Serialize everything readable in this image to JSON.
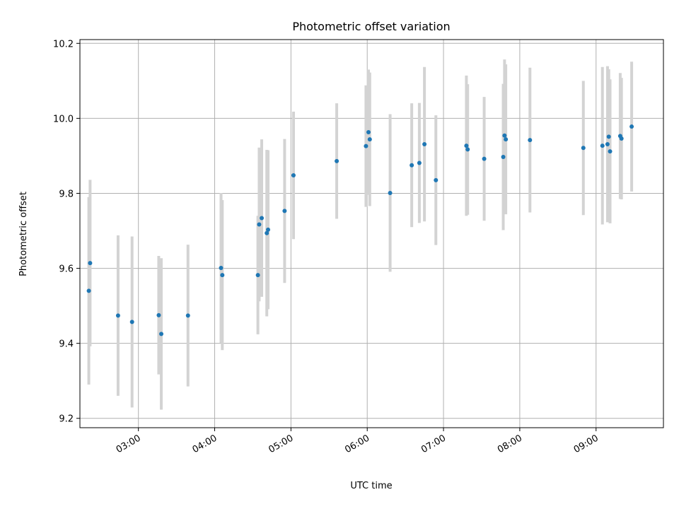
{
  "chart_data": {
    "type": "scatter",
    "title": "Photometric offset variation",
    "xlabel": "UTC time",
    "ylabel": "Photometric offset",
    "x_ticks": [
      "03:00",
      "04:00",
      "05:00",
      "06:00",
      "07:00",
      "08:00",
      "09:00"
    ],
    "y_ticks": [
      "9.2",
      "9.4",
      "9.6",
      "9.8",
      "10.0",
      "10.2"
    ],
    "xlim": [
      "02:14",
      "09:53"
    ],
    "ylim": [
      9.175,
      10.21
    ],
    "grid": true,
    "colors": {
      "point": "#1f77b4",
      "errorbar": "#d3d3d3",
      "grid": "#b0b0b0"
    },
    "series": [
      {
        "points": [
          {
            "x": "02:21",
            "y": 9.54,
            "err": 0.25
          },
          {
            "x": "02:22",
            "y": 9.614,
            "err": 0.222
          },
          {
            "x": "02:44",
            "y": 9.474,
            "err": 0.214
          },
          {
            "x": "02:55",
            "y": 9.457,
            "err": 0.228
          },
          {
            "x": "03:16",
            "y": 9.475,
            "err": 0.158
          },
          {
            "x": "03:18",
            "y": 9.425,
            "err": 0.202
          },
          {
            "x": "03:39",
            "y": 9.474,
            "err": 0.189
          },
          {
            "x": "04:05",
            "y": 9.601,
            "err": 0.2
          },
          {
            "x": "04:06",
            "y": 9.582,
            "err": 0.2
          },
          {
            "x": "04:34",
            "y": 9.582,
            "err": 0.158
          },
          {
            "x": "04:35",
            "y": 9.717,
            "err": 0.205
          },
          {
            "x": "04:37",
            "y": 9.734,
            "err": 0.21
          },
          {
            "x": "04:41",
            "y": 9.694,
            "err": 0.222
          },
          {
            "x": "04:42",
            "y": 9.703,
            "err": 0.212
          },
          {
            "x": "04:55",
            "y": 9.753,
            "err": 0.192
          },
          {
            "x": "05:02",
            "y": 9.848,
            "err": 0.17
          },
          {
            "x": "05:36",
            "y": 9.886,
            "err": 0.154
          },
          {
            "x": "05:59",
            "y": 9.926,
            "err": 0.162
          },
          {
            "x": "06:01",
            "y": 9.963,
            "err": 0.167
          },
          {
            "x": "06:02",
            "y": 9.944,
            "err": 0.178
          },
          {
            "x": "06:18",
            "y": 9.801,
            "err": 0.21
          },
          {
            "x": "06:35",
            "y": 9.875,
            "err": 0.165
          },
          {
            "x": "06:41",
            "y": 9.881,
            "err": 0.16
          },
          {
            "x": "06:45",
            "y": 9.931,
            "err": 0.206
          },
          {
            "x": "06:54",
            "y": 9.835,
            "err": 0.173
          },
          {
            "x": "07:18",
            "y": 9.927,
            "err": 0.187
          },
          {
            "x": "07:19",
            "y": 9.917,
            "err": 0.174
          },
          {
            "x": "07:32",
            "y": 9.892,
            "err": 0.165
          },
          {
            "x": "07:47",
            "y": 9.897,
            "err": 0.195
          },
          {
            "x": "07:48",
            "y": 9.954,
            "err": 0.203
          },
          {
            "x": "07:49",
            "y": 9.944,
            "err": 0.2
          },
          {
            "x": "08:08",
            "y": 9.942,
            "err": 0.193
          },
          {
            "x": "08:50",
            "y": 9.921,
            "err": 0.179
          },
          {
            "x": "09:05",
            "y": 9.927,
            "err": 0.21
          },
          {
            "x": "09:09",
            "y": 9.931,
            "err": 0.208
          },
          {
            "x": "09:10",
            "y": 9.951,
            "err": 0.18
          },
          {
            "x": "09:11",
            "y": 9.912,
            "err": 0.192
          },
          {
            "x": "09:19",
            "y": 9.953,
            "err": 0.168
          },
          {
            "x": "09:20",
            "y": 9.946,
            "err": 0.162
          },
          {
            "x": "09:28",
            "y": 9.978,
            "err": 0.173
          }
        ]
      }
    ]
  }
}
